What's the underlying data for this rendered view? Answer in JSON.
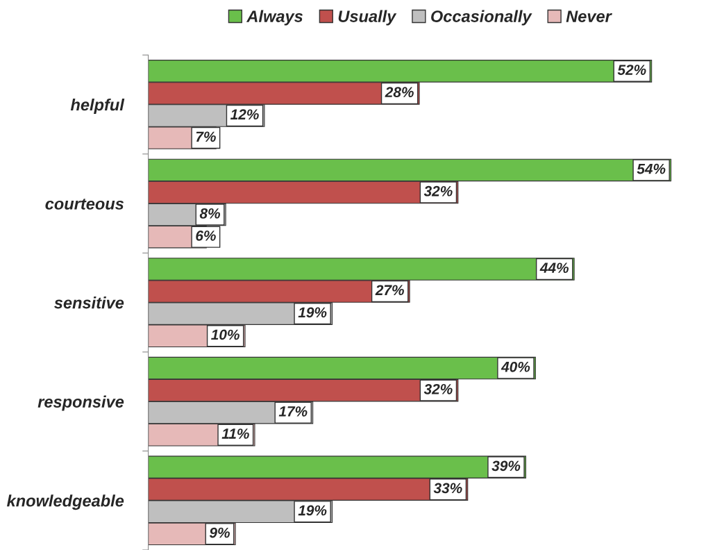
{
  "chart_data": {
    "type": "bar",
    "orientation": "horizontal",
    "categories": [
      "helpful",
      "courteous",
      "sensitive",
      "responsive",
      "knowledgeable"
    ],
    "series": [
      {
        "name": "Always",
        "color": "#6abf4b",
        "values": [
          52,
          54,
          44,
          40,
          39
        ],
        "value_labels": [
          "52%",
          "54%",
          "44%",
          "40%",
          "39%"
        ]
      },
      {
        "name": "Usually",
        "color": "#c0504d",
        "values": [
          28,
          32,
          27,
          32,
          33
        ],
        "value_labels": [
          "28%",
          "32%",
          "27%",
          "32%",
          "33%"
        ]
      },
      {
        "name": "Occasionally",
        "color": "#bfbfbf",
        "values": [
          12,
          8,
          19,
          17,
          19
        ],
        "value_labels": [
          "12%",
          "8%",
          "19%",
          "17%",
          "19%"
        ]
      },
      {
        "name": "Never",
        "color": "#e6b9b8",
        "values": [
          7,
          6,
          10,
          11,
          9
        ],
        "value_labels": [
          "7%",
          "6%",
          "10%",
          "11%",
          "9%"
        ]
      }
    ],
    "legend": "top",
    "grid": false
  }
}
